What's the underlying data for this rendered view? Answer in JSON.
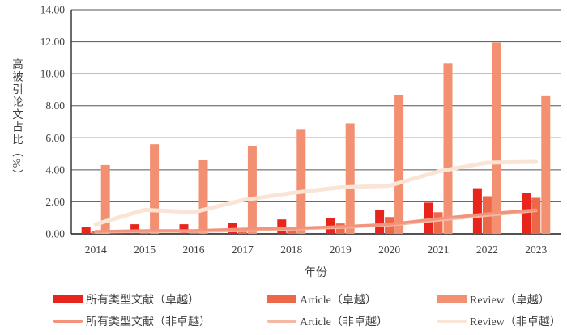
{
  "chart_data": {
    "type": "bar",
    "title": "",
    "xlabel": "年份",
    "ylabel": "高被引论文占比（%）",
    "ylim": [
      0,
      14
    ],
    "ytick_labels": [
      "0.00",
      "2.00",
      "4.00",
      "6.00",
      "8.00",
      "10.00",
      "12.00",
      "14.00"
    ],
    "grid": true,
    "legend_position": "bottom",
    "categories": [
      "2014",
      "2015",
      "2016",
      "2017",
      "2018",
      "2019",
      "2020",
      "2021",
      "2022",
      "2023"
    ],
    "series": [
      {
        "name": "所有类型文献（卓越）",
        "type": "bar",
        "color": "#e7251d",
        "values": [
          0.45,
          0.6,
          0.6,
          0.7,
          0.9,
          1.0,
          1.5,
          1.95,
          2.85,
          2.55
        ]
      },
      {
        "name": "Article（卓越）",
        "type": "bar",
        "color": "#ec6848",
        "values": [
          0.2,
          0.15,
          0.25,
          0.3,
          0.4,
          0.65,
          1.05,
          1.35,
          2.35,
          2.25
        ]
      },
      {
        "name": "Review（卓越）",
        "type": "bar",
        "color": "#f29071",
        "values": [
          4.3,
          5.6,
          4.6,
          5.5,
          6.5,
          6.9,
          8.65,
          10.65,
          11.95,
          8.6
        ]
      },
      {
        "name": "所有类型文献（非卓越）",
        "type": "line",
        "color": "#f2937e",
        "values": [
          0.15,
          0.2,
          0.2,
          0.3,
          0.35,
          0.45,
          0.6,
          0.95,
          1.25,
          1.5
        ]
      },
      {
        "name": "Article（非卓越）",
        "type": "line",
        "color": "#f6b8a2",
        "values": [
          0.1,
          0.15,
          0.15,
          0.2,
          0.3,
          0.4,
          0.55,
          0.85,
          1.15,
          1.45
        ]
      },
      {
        "name": "Review（非卓越）",
        "type": "line",
        "color": "#fae4d5",
        "values": [
          0.6,
          1.5,
          1.35,
          2.1,
          2.55,
          2.9,
          3.0,
          3.9,
          4.45,
          4.5
        ]
      }
    ]
  }
}
